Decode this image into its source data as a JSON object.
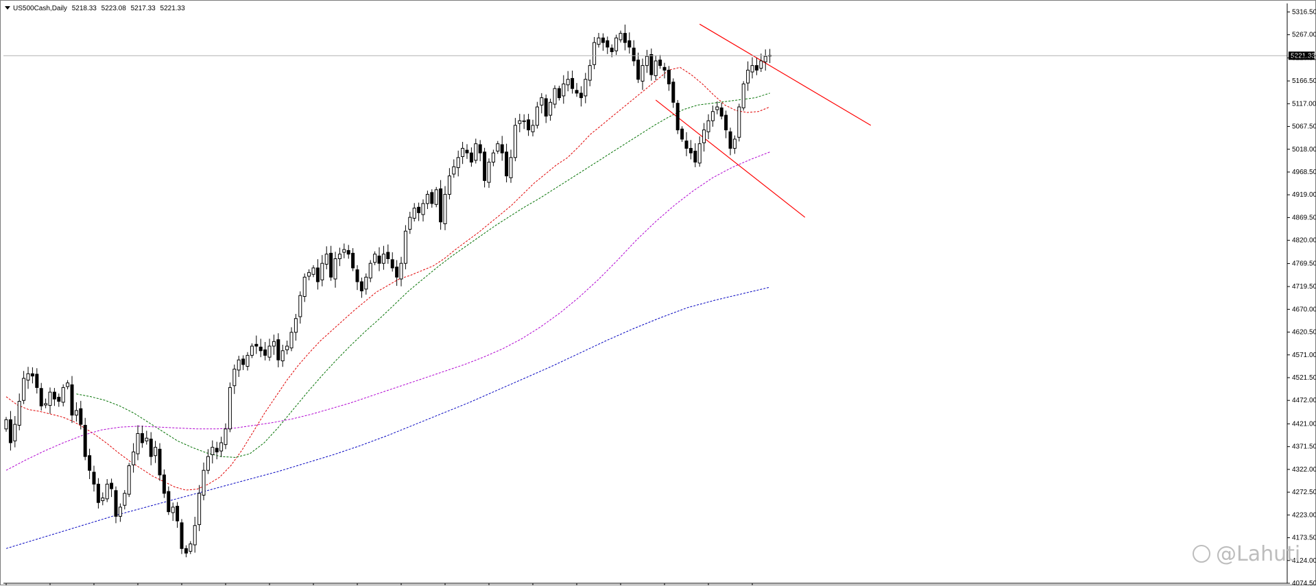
{
  "header": {
    "symbol": "US500Cash,Daily",
    "ohlc": [
      "5218.33",
      "5223.08",
      "5217.33",
      "5221.33"
    ]
  },
  "watermark": {
    "text": "@Lahuti",
    "icon": "weibo-icon"
  },
  "colors": {
    "ma_fast": "#e00000",
    "ma_mid": "#007000",
    "ma_slow": "#b000d0",
    "ma_long": "#0000c0",
    "trendline": "#ff0000",
    "bull_body": "#ffffff",
    "bear_body": "#000000"
  },
  "chart_data": {
    "type": "candlestick",
    "symbol": "US500Cash",
    "timeframe": "Daily",
    "current_price": "5221.33",
    "ylim": [
      4074.5,
      5335
    ],
    "y_ticks": [
      "5316.50",
      "5267.00",
      "5216.50",
      "5166.50",
      "5117.00",
      "5067.50",
      "5018.00",
      "4968.50",
      "4919.00",
      "4869.50",
      "4820.00",
      "4769.50",
      "4719.50",
      "4670.00",
      "4620.50",
      "4571.00",
      "4521.50",
      "4472.00",
      "4421.00",
      "4371.50",
      "4322.00",
      "4272.50",
      "4223.00",
      "4173.50",
      "4124.00",
      "4074.50"
    ],
    "candles_close": [
      4430,
      4380,
      4420,
      4470,
      4520,
      4530,
      4525,
      4500,
      4460,
      4465,
      4490,
      4475,
      4470,
      4500,
      4510,
      4440,
      4450,
      4420,
      4350,
      4320,
      4290,
      4250,
      4260,
      4290,
      4280,
      4220,
      4240,
      4270,
      4330,
      4360,
      4400,
      4380,
      4390,
      4350,
      4370,
      4310,
      4270,
      4230,
      4240,
      4210,
      4150,
      4140,
      4160,
      4200,
      4270,
      4320,
      4350,
      4370,
      4360,
      4380,
      4410,
      4500,
      4540,
      4560,
      4550,
      4570,
      4590,
      4590,
      4580,
      4570,
      4590,
      4600,
      4560,
      4580,
      4590,
      4620,
      4650,
      4700,
      4740,
      4750,
      4760,
      4730,
      4770,
      4790,
      4740,
      4780,
      4790,
      4800,
      4790,
      4760,
      4730,
      4710,
      4740,
      4770,
      4790,
      4770,
      4790,
      4780,
      4760,
      4740,
      4770,
      4840,
      4870,
      4890,
      4880,
      4900,
      4920,
      4900,
      4930,
      4860,
      4920,
      4960,
      4980,
      5000,
      5020,
      5010,
      4990,
      5030,
      5010,
      4950,
      4990,
      5010,
      5030,
      5010,
      4960,
      5000,
      5070,
      5080,
      5080,
      5060,
      5070,
      5110,
      5130,
      5090,
      5120,
      5150,
      5130,
      5160,
      5170,
      5150,
      5140,
      5130,
      5170,
      5200,
      5250,
      5260,
      5250,
      5240,
      5230,
      5260,
      5270,
      5250,
      5240,
      5210,
      5170,
      5200,
      5220,
      5180,
      5210,
      5200,
      5190,
      5160,
      5120,
      5060,
      5040,
      5020,
      5010,
      4990,
      5030,
      5060,
      5080,
      5100,
      5110,
      5090,
      5060,
      5020,
      5040,
      5110,
      5160,
      5190,
      5200,
      5190,
      5210,
      5220,
      5221.33
    ],
    "moving_averages": [
      {
        "key": "ma_fast",
        "values": [
          4480,
          4462,
          4452,
          4448,
          4442,
          4436,
          4426,
          4412,
          4396,
          4378,
          4358,
          4340,
          4324,
          4308,
          4296,
          4284,
          4277,
          4279,
          4290,
          4305,
          4330,
          4364,
          4404,
          4444,
          4480,
          4516,
          4548,
          4576,
          4602,
          4624,
          4646,
          4668,
          4688,
          4708,
          4722,
          4736,
          4744,
          4754,
          4764,
          4780,
          4800,
          4818,
          4836,
          4856,
          4876,
          4896,
          4920,
          4944,
          4964,
          4984,
          5000,
          5024,
          5050,
          5070,
          5090,
          5110,
          5130,
          5150,
          5170,
          5190,
          5196,
          5180,
          5160,
          5136,
          5114,
          5102,
          5098,
          5100,
          5110
        ]
      },
      {
        "key": "ma_mid",
        "values": [
          4486,
          4480,
          4472,
          4460,
          4444,
          4424,
          4404,
          4384,
          4370,
          4358,
          4350,
          4348,
          4356,
          4380,
          4414,
          4452,
          4490,
          4526,
          4560,
          4592,
          4622,
          4650,
          4680,
          4710,
          4736,
          4762,
          4786,
          4808,
          4830,
          4852,
          4872,
          4892,
          4910,
          4930,
          4950,
          4970,
          4990,
          5010,
          5030,
          5050,
          5070,
          5088,
          5104,
          5114,
          5118,
          5122,
          5126,
          5130,
          5140
        ]
      },
      {
        "key": "ma_slow",
        "values": [
          4320,
          4342,
          4362,
          4380,
          4396,
          4408,
          4414,
          4416,
          4414,
          4412,
          4410,
          4410,
          4412,
          4418,
          4424,
          4432,
          4442,
          4454,
          4466,
          4480,
          4494,
          4508,
          4522,
          4536,
          4550,
          4566,
          4584,
          4606,
          4632,
          4662,
          4696,
          4734,
          4776,
          4820,
          4860,
          4896,
          4928,
          4956,
          4978,
          4996,
          5012
        ]
      },
      {
        "key": "ma_long",
        "values": [
          4150,
          4168,
          4186,
          4204,
          4222,
          4238,
          4254,
          4270,
          4286,
          4302,
          4318,
          4336,
          4354,
          4374,
          4396,
          4420,
          4444,
          4468,
          4494,
          4520,
          4546,
          4574,
          4602,
          4628,
          4652,
          4674,
          4690,
          4704,
          4718
        ]
      }
    ]
  }
}
